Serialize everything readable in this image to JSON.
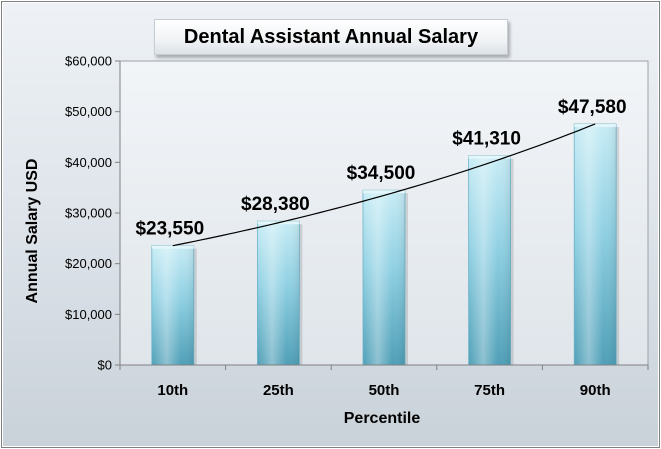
{
  "chart_data": {
    "type": "bar",
    "title": "Dental Assistant Annual Salary",
    "xlabel": "Percentile",
    "ylabel": "Annual Salary USD",
    "categories": [
      "10th",
      "25th",
      "50th",
      "75th",
      "90th"
    ],
    "values": [
      23550,
      28380,
      34500,
      41310,
      47580
    ],
    "data_labels": [
      "$23,550",
      "$28,380",
      "$34,500",
      "$41,310",
      "$47,580"
    ],
    "ylim": [
      0,
      60000
    ],
    "yticks": [
      0,
      10000,
      20000,
      30000,
      40000,
      50000,
      60000
    ],
    "ytick_labels": [
      "$0",
      "$10,000",
      "$20,000",
      "$30,000",
      "$40,000",
      "$50,000",
      "$60,000"
    ],
    "grid": false,
    "legend": "none",
    "trendline": "exponential",
    "colors": {
      "bar_top": "#c7ecf5",
      "bar_mid": "#8fd0e3",
      "bar_bottom": "#4f9fb7",
      "trendline": "#000000"
    }
  }
}
